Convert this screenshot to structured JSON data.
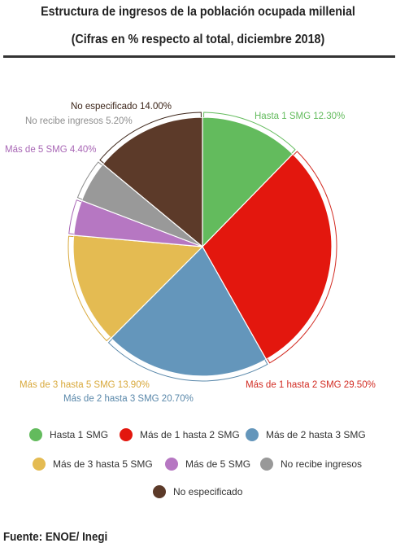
{
  "header": {
    "title": "Estructura de ingresos de la población ocupada millenial",
    "subtitle": "(Cifras en % respecto al total, diciembre 2018)"
  },
  "chart_data": {
    "type": "pie",
    "slices": [
      {
        "name": "Hasta 1 SMG",
        "label": "Hasta 1 SMG",
        "value_label": "12.30%",
        "value": 12.3,
        "color": "#63bb5d"
      },
      {
        "name": "Más de 1 hasta 2 SMG",
        "label": "Más de 1 hasta 2 SMG",
        "value_label": "29.50%",
        "value": 29.5,
        "color": "#e3170e"
      },
      {
        "name": "Más de 2 hasta 3 SMG",
        "label": "Más de 2 hasta 3 SMG",
        "value_label": "20.70%",
        "value": 20.7,
        "color": "#6496bb"
      },
      {
        "name": "Más de 3 hasta 5 SMG",
        "label": "Más de 3 hasta 5 SMG",
        "value_label": "13.90%",
        "value": 13.9,
        "color": "#e4bb52"
      },
      {
        "name": "Más de 5 SMG",
        "label": "Más de 5 SMG",
        "value_label": "4.40%",
        "value": 4.4,
        "color": "#b677c2"
      },
      {
        "name": "No recibe ingresos",
        "label": "No recibe ingresos",
        "value_label": "5.20%",
        "value": 5.2,
        "color": "#999999"
      },
      {
        "name": "No especificado",
        "label": "No especificado",
        "value_label": "14.00%",
        "value": 14.0,
        "color": "#5c3a29"
      }
    ],
    "legend_placement": "bottom"
  },
  "source": "Fuente: ENOE/ Inegi"
}
